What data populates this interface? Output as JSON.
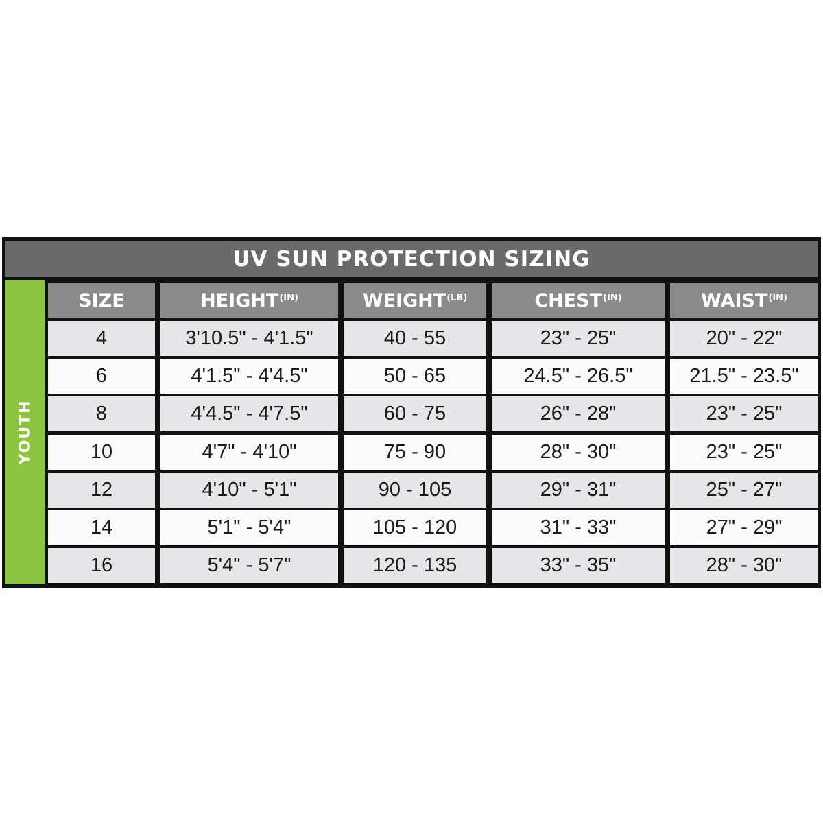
{
  "title": "UV SUN PROTECTION SIZING",
  "group_label": "YOUTH",
  "colors": {
    "title_bar": "#6a6a6b",
    "header": "#8a8a8b",
    "group": "#8cc43f",
    "row_alt": "#e6e6e8",
    "border": "#111111"
  },
  "columns": [
    {
      "label": "SIZE",
      "unit": ""
    },
    {
      "label": "HEIGHT",
      "unit": "(IN)"
    },
    {
      "label": "WEIGHT",
      "unit": "(LB)"
    },
    {
      "label": "CHEST",
      "unit": "(IN)"
    },
    {
      "label": "WAIST",
      "unit": "(IN)"
    }
  ],
  "rows": [
    [
      "4",
      "3'10.5\" - 4'1.5\"",
      "40 - 55",
      "23\" - 25\"",
      "20\" - 22\""
    ],
    [
      "6",
      "4'1.5\" - 4'4.5\"",
      "50 - 65",
      "24.5\" - 26.5\"",
      "21.5\" - 23.5\""
    ],
    [
      "8",
      "4'4.5\" - 4'7.5\"",
      "60 - 75",
      "26\" - 28\"",
      "23\" - 25\""
    ],
    [
      "10",
      "4'7\" - 4'10\"",
      "75 - 90",
      "28\" - 30\"",
      "23\" - 25\""
    ],
    [
      "12",
      "4'10\" - 5'1\"",
      "90 - 105",
      "29\" - 31\"",
      "25\" - 27\""
    ],
    [
      "14",
      "5'1\" - 5'4\"",
      "105 - 120",
      "31\" - 33\"",
      "27\" - 29\""
    ],
    [
      "16",
      "5'4\" - 5'7\"",
      "120 - 135",
      "33\" - 35\"",
      "28\" - 30\""
    ]
  ]
}
